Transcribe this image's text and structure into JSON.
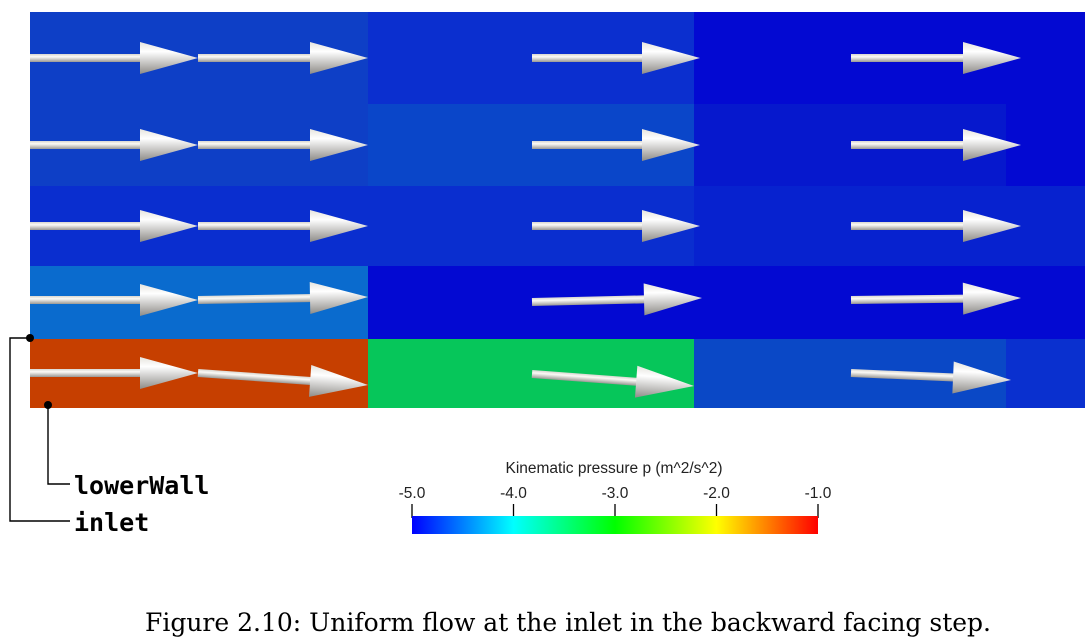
{
  "field": {
    "cell_colors": [
      [
        "#0e3fc6",
        "#0b2fcf",
        "#0309d2"
      ],
      [
        "#0e3fc6",
        "#0538c6",
        "#0309d2"
      ],
      [
        "#0a2ecf",
        "#0a2ecf",
        "#0a2ecf"
      ],
      [
        "#0a6bce",
        "#0309d2",
        "#0309d2"
      ],
      [
        "#c63f00",
        "#06c65a",
        "#0a48c6"
      ]
    ],
    "wall_color": "#ffffff"
  },
  "labels": {
    "lower_wall": "lowerWall",
    "inlet": "inlet"
  },
  "colorbar": {
    "title": "Kinematic pressure p (m^2/s^2)",
    "ticks": [
      "-5.0",
      "-4.0",
      "-3.0",
      "-2.0",
      "-1.0"
    ],
    "range": [
      -5.0,
      -1.0
    ],
    "colormap": "rainbow (blue to red)"
  },
  "caption": "Figure 2.10: Uniform flow at the inlet in the backward facing step."
}
